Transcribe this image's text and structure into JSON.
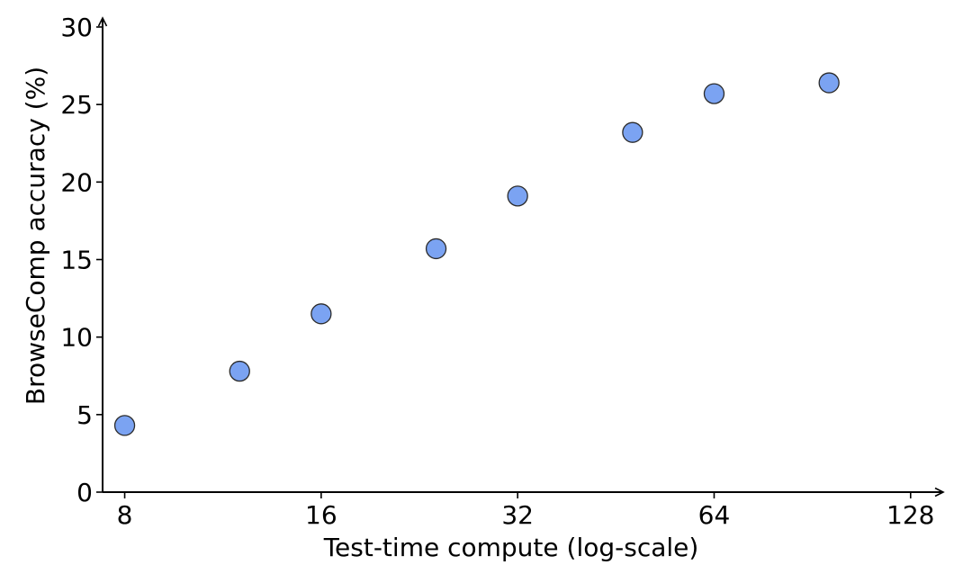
{
  "chart_data": {
    "type": "scatter",
    "title": "",
    "xlabel": "Test-time compute (log-scale)",
    "ylabel": "BrowseComp accuracy (%)",
    "x_scale": "log2",
    "xlim": [
      7.4,
      140
    ],
    "ylim": [
      0,
      30
    ],
    "x_ticks": [
      8,
      16,
      32,
      64,
      128
    ],
    "y_ticks": [
      0,
      5,
      10,
      15,
      20,
      25,
      30
    ],
    "grid": false,
    "legend": "none",
    "marker_color": "#7ba3f2",
    "marker_edge_color": "#2b2b2b",
    "points": [
      {
        "x": 8,
        "y": 4.3
      },
      {
        "x": 12,
        "y": 7.8
      },
      {
        "x": 16,
        "y": 11.5
      },
      {
        "x": 24,
        "y": 15.7
      },
      {
        "x": 32,
        "y": 19.1
      },
      {
        "x": 48,
        "y": 23.2
      },
      {
        "x": 64,
        "y": 25.7
      },
      {
        "x": 96,
        "y": 26.4
      }
    ]
  }
}
